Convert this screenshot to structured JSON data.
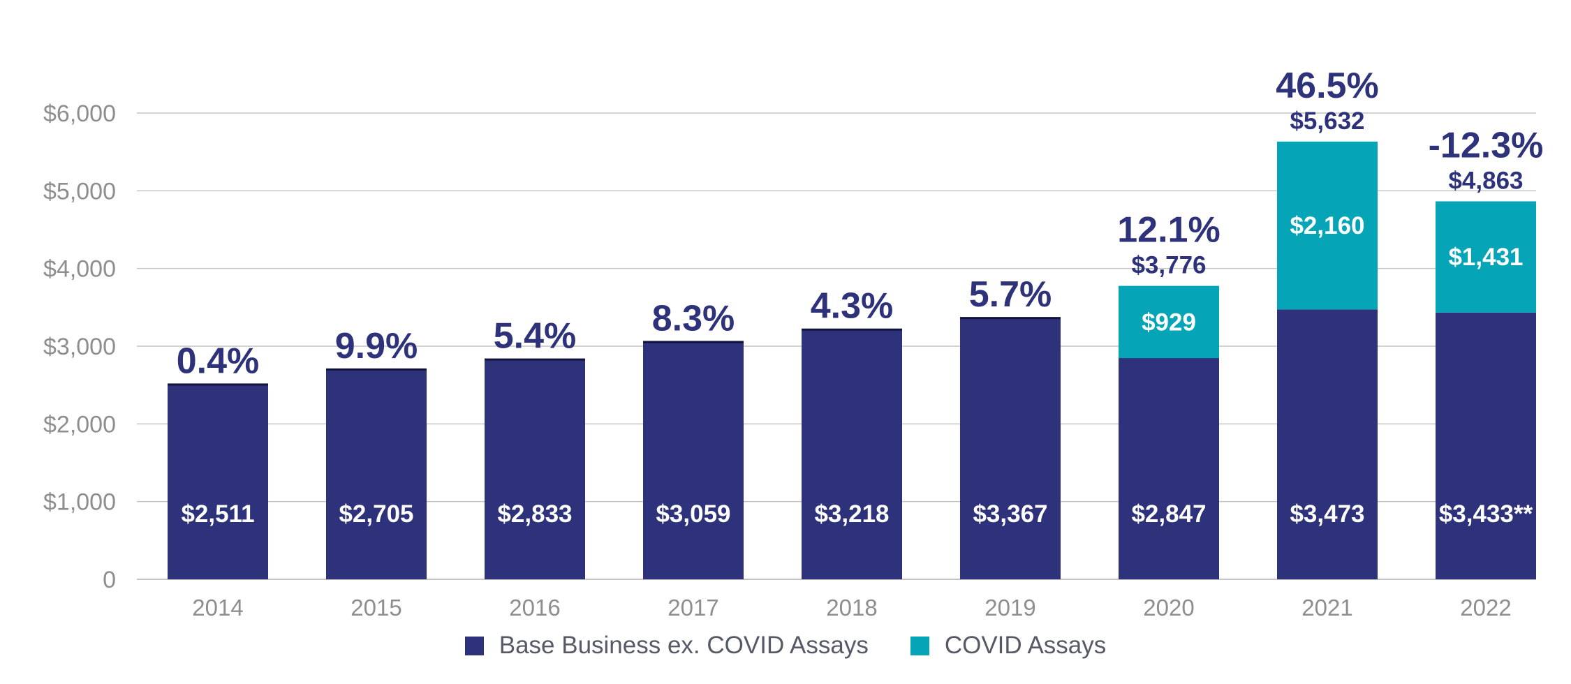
{
  "colors": {
    "base": "#2d327a",
    "covid": "#05a5b7",
    "grid": "#c4c4c4",
    "axis_text": "#8e8e8e"
  },
  "chart_data": {
    "type": "bar",
    "stacked": true,
    "categories": [
      "2014",
      "2015",
      "2016",
      "2017",
      "2018",
      "2019",
      "2020",
      "2021",
      "2022"
    ],
    "series": [
      {
        "name": "Base Business ex. COVID Assays",
        "values": [
          2511,
          2705,
          2833,
          3059,
          3218,
          3367,
          2847,
          3473,
          3433
        ],
        "labels": [
          "$2,511",
          "$2,705",
          "$2,833",
          "$3,059",
          "$3,218",
          "$3,367",
          "$2,847",
          "$3,473",
          "$3,433**"
        ]
      },
      {
        "name": "COVID Assays",
        "values": [
          0,
          0,
          0,
          0,
          0,
          0,
          929,
          2160,
          1431
        ],
        "labels": [
          "",
          "",
          "",
          "",
          "",
          "",
          "$929",
          "$2,160",
          "$1,431"
        ]
      }
    ],
    "totals": [
      2511,
      2705,
      2833,
      3059,
      3218,
      3367,
      3776,
      5632,
      4863
    ],
    "total_labels": [
      "",
      "",
      "",
      "",
      "",
      "",
      "$3,776",
      "$5,632",
      "$4,863"
    ],
    "growth_labels": [
      "0.4%",
      "9.9%",
      "5.4%",
      "8.3%",
      "4.3%",
      "5.7%",
      "12.1%",
      "46.5%",
      "-12.3%"
    ],
    "yticks": [
      0,
      1000,
      2000,
      3000,
      4000,
      5000,
      6000
    ],
    "ytick_labels": [
      "0",
      "$1,000",
      "$2,000",
      "$3,000",
      "$4,000",
      "$5,000",
      "$6,000"
    ],
    "ylim": [
      0,
      6000
    ],
    "grid": true,
    "legend_position": "bottom-center",
    "title": "",
    "xlabel": "",
    "ylabel": ""
  }
}
